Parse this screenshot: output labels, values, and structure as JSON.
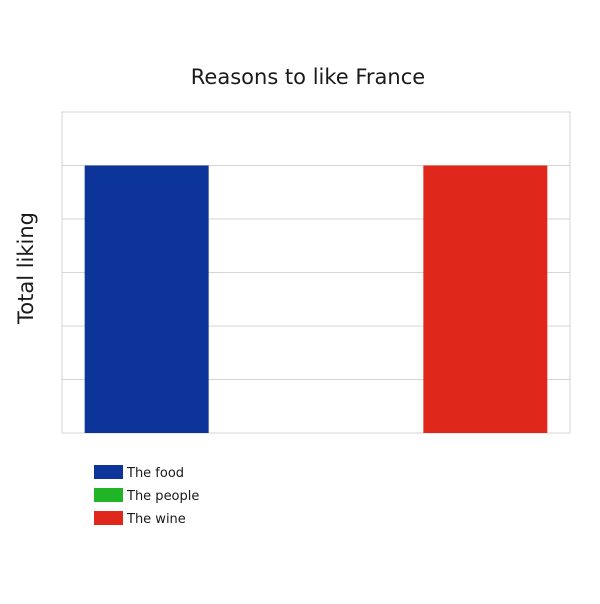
{
  "chart_data": {
    "type": "bar",
    "title": "Reasons to like France",
    "xlabel": "",
    "ylabel": "Total liking",
    "categories": [
      "The food",
      "The people",
      "The wine"
    ],
    "values": [
      5,
      0,
      5
    ],
    "ylim": [
      0,
      6
    ],
    "grid": true,
    "legend_position": "bottom-left",
    "series": [
      {
        "name": "The food",
        "color": "#0d3599",
        "value": 5
      },
      {
        "name": "The people",
        "color": "#1fb526",
        "value": 0
      },
      {
        "name": "The wine",
        "color": "#e0271b",
        "value": 5
      }
    ]
  }
}
